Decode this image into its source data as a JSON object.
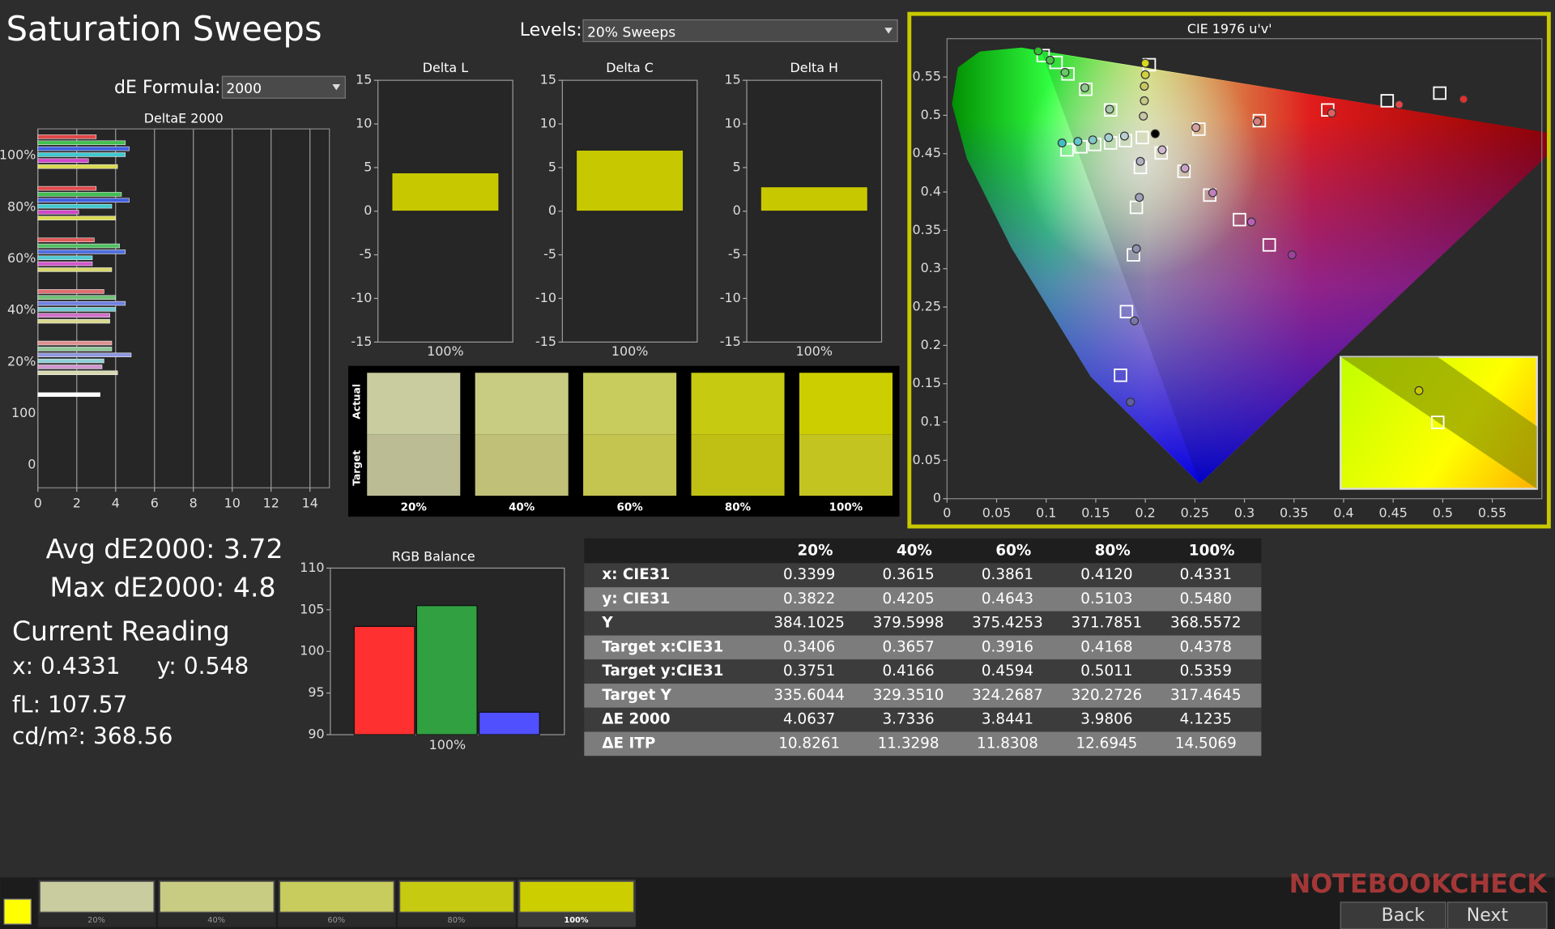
{
  "header": {
    "title": "Saturation Sweeps",
    "levels_label": "Levels:",
    "levels_value": "20% Sweeps",
    "formula_label": "dE Formula:",
    "formula_value": "2000"
  },
  "deltae_chart": {
    "type": "hbar",
    "title": "DeltaE 2000",
    "xlim": [
      0,
      15
    ],
    "xticks": [
      0,
      2,
      4,
      6,
      8,
      10,
      12,
      14
    ],
    "grid": true,
    "groups": [
      {
        "label": "100%",
        "colors": [
          "#e04848",
          "#40c050",
          "#4060e0",
          "#40c8d0",
          "#d048c8",
          "#d8d850"
        ],
        "values": [
          3.0,
          4.5,
          4.7,
          4.5,
          2.6,
          4.1
        ]
      },
      {
        "label": "80%",
        "colors": [
          "#e04848",
          "#40c050",
          "#4060e0",
          "#40c8d0",
          "#d048c8",
          "#d8d850"
        ],
        "values": [
          3.0,
          4.3,
          4.7,
          3.8,
          2.1,
          4.0
        ]
      },
      {
        "label": "60%",
        "colors": [
          "#e05858",
          "#50c060",
          "#5070e0",
          "#50c8d0",
          "#d058c8",
          "#d8d870"
        ],
        "values": [
          2.9,
          4.2,
          4.5,
          2.8,
          2.8,
          3.8
        ]
      },
      {
        "label": "40%",
        "colors": [
          "#e07070",
          "#70c078",
          "#7080e0",
          "#70c8d0",
          "#d070c8",
          "#d8d890"
        ],
        "values": [
          3.4,
          4.0,
          4.5,
          4.0,
          3.7,
          3.7
        ]
      },
      {
        "label": "20%",
        "colors": [
          "#e09090",
          "#90c898",
          "#9098e0",
          "#90d0d8",
          "#d098d0",
          "#d8d8b0"
        ],
        "values": [
          3.8,
          3.8,
          4.8,
          3.4,
          3.3,
          4.1
        ]
      },
      {
        "label": "100",
        "colors": [
          "#ffffff"
        ],
        "values": [
          3.2
        ]
      },
      {
        "label": "0",
        "colors": [],
        "values": []
      }
    ]
  },
  "delta_charts": [
    {
      "type": "bar",
      "title": "Delta L",
      "categories": [
        "100%"
      ],
      "values": [
        4.4
      ],
      "color": "#c8c800",
      "ylim": [
        -15,
        15
      ],
      "yticks": [
        -15,
        -10,
        -5,
        0,
        5,
        10,
        15
      ]
    },
    {
      "type": "bar",
      "title": "Delta C",
      "categories": [
        "100%"
      ],
      "values": [
        7.0
      ],
      "color": "#c8c800",
      "ylim": [
        -15,
        15
      ],
      "yticks": [
        -15,
        -10,
        -5,
        0,
        5,
        10,
        15
      ]
    },
    {
      "type": "bar",
      "title": "Delta H",
      "categories": [
        "100%"
      ],
      "values": [
        2.8
      ],
      "color": "#c8c800",
      "ylim": [
        -15,
        15
      ],
      "yticks": [
        -15,
        -10,
        -5,
        0,
        5,
        10,
        15
      ]
    }
  ],
  "swatches": {
    "actual_label": "Actual",
    "target_label": "Target",
    "labels": [
      "20%",
      "40%",
      "60%",
      "80%",
      "100%"
    ],
    "actual_colors": [
      "#c8cc9e",
      "#c8cc82",
      "#c8cc5c",
      "#c6ca10",
      "#ccce00"
    ],
    "target_colors": [
      "#bcbc94",
      "#c0c078",
      "#c4c450",
      "#c0c014",
      "#c4c420"
    ]
  },
  "cie_chart": {
    "type": "scatter",
    "title": "CIE 1976 u'v'",
    "xlim": [
      0,
      0.6
    ],
    "ylim": [
      0,
      0.6
    ],
    "xticks": [
      0,
      0.05,
      0.1,
      0.15,
      0.2,
      0.25,
      0.3,
      0.35,
      0.4,
      0.45,
      0.5,
      0.55
    ],
    "yticks": [
      0,
      0.05,
      0.1,
      0.15,
      0.2,
      0.25,
      0.3,
      0.35,
      0.4,
      0.45,
      0.5,
      0.55
    ],
    "target_u": [
      0.497,
      0.444,
      0.384,
      0.315,
      0.254,
      0.097,
      0.11,
      0.122,
      0.14,
      0.165,
      0.175,
      0.181,
      0.188,
      0.191,
      0.195,
      0.121,
      0.135,
      0.149,
      0.165,
      0.18,
      0.325,
      0.295,
      0.265,
      0.239,
      0.216,
      0.204,
      0.197
    ],
    "target_v": [
      0.529,
      0.519,
      0.507,
      0.493,
      0.482,
      0.578,
      0.569,
      0.554,
      0.534,
      0.507,
      0.161,
      0.244,
      0.318,
      0.38,
      0.432,
      0.455,
      0.459,
      0.462,
      0.464,
      0.467,
      0.331,
      0.364,
      0.396,
      0.427,
      0.451,
      0.566,
      0.471
    ],
    "measured_u": [
      0.521,
      0.456,
      0.388,
      0.313,
      0.251,
      0.092,
      0.104,
      0.119,
      0.139,
      0.164,
      0.185,
      0.189,
      0.191,
      0.194,
      0.195,
      0.116,
      0.132,
      0.147,
      0.163,
      0.179,
      0.348,
      0.307,
      0.268,
      0.24,
      0.217,
      0.2,
      0.2,
      0.199,
      0.199,
      0.198,
      0.21
    ],
    "measured_v": [
      0.521,
      0.514,
      0.503,
      0.492,
      0.484,
      0.584,
      0.572,
      0.556,
      0.536,
      0.508,
      0.126,
      0.232,
      0.326,
      0.393,
      0.44,
      0.464,
      0.466,
      0.468,
      0.471,
      0.473,
      0.318,
      0.361,
      0.399,
      0.431,
      0.455,
      0.568,
      0.553,
      0.538,
      0.519,
      0.499,
      0.476
    ],
    "measured_colors": [
      "#e03030",
      "#e04848",
      "#e06060",
      "#d88080",
      "#d8a0a0",
      "#30c030",
      "#48c048",
      "#68c868",
      "#90c890",
      "#a8c8a8",
      "#6060a0",
      "#7878a8",
      "#9090b0",
      "#a0a0b8",
      "#b0b0c0",
      "#40c0c0",
      "#60c8c8",
      "#80c8c8",
      "#a0d0d0",
      "#b8d0d0",
      "#a040a0",
      "#b860b8",
      "#c080c0",
      "#c8a0c8",
      "#d0b8d0",
      "#d8d820",
      "#d0d040",
      "#c8c860",
      "#c8c888",
      "#c8c8a8",
      "#000000"
    ]
  },
  "stats": {
    "avg": "Avg dE2000: 3.72",
    "max": "Max dE2000: 4.8",
    "reading": "Current Reading",
    "x": "x: 0.4331",
    "y": "y: 0.548",
    "fl": "fL: 107.57",
    "cdm2": "cd/m²: 368.56"
  },
  "rgb_chart": {
    "type": "bar",
    "title": "RGB Balance",
    "categories": [
      "100%"
    ],
    "values": [
      103.0,
      105.5,
      92.7
    ],
    "colors": [
      "#ff3030",
      "#30a040",
      "#5050ff"
    ],
    "ylim": [
      90,
      110
    ],
    "yticks": [
      90,
      95,
      100,
      105,
      110
    ]
  },
  "table": {
    "header": [
      "20%",
      "40%",
      "60%",
      "80%",
      "100%"
    ],
    "rows": [
      [
        "x: CIE31",
        "0.3399",
        "0.3615",
        "0.3861",
        "0.4120",
        "0.4331"
      ],
      [
        "y: CIE31",
        "0.3822",
        "0.4205",
        "0.4643",
        "0.5103",
        "0.5480"
      ],
      [
        "Y",
        "384.1025",
        "379.5998",
        "375.4253",
        "371.7851",
        "368.5572"
      ],
      [
        "Target x:CIE31",
        "0.3406",
        "0.3657",
        "0.3916",
        "0.4168",
        "0.4378"
      ],
      [
        "Target y:CIE31",
        "0.3751",
        "0.4166",
        "0.4594",
        "0.5011",
        "0.5359"
      ],
      [
        "Target Y",
        "335.6044",
        "329.3510",
        "324.2687",
        "320.2726",
        "317.4645"
      ],
      [
        "ΔE 2000",
        "4.0637",
        "3.7336",
        "3.8441",
        "3.9806",
        "4.1235"
      ],
      [
        "ΔE ITP",
        "10.8261",
        "11.3298",
        "11.8308",
        "12.6945",
        "14.5069"
      ]
    ]
  },
  "footer": {
    "thumbs": [
      "20%",
      "40%",
      "60%",
      "80%",
      "100%"
    ],
    "back": "Back",
    "next": "Next",
    "watermark": "NOTEBOOKCHECK"
  }
}
